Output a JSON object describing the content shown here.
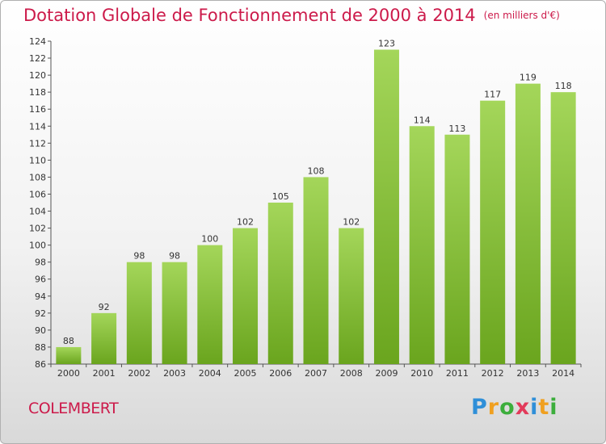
{
  "header": {
    "title": "Dotation Globale de Fonctionnement de 2000 à 2014",
    "subtitle": "(en milliers d'€)"
  },
  "commune": "COLEMBERT",
  "logo": {
    "letters": [
      "P",
      "r",
      "o",
      "x",
      "i",
      "t",
      "i"
    ],
    "colors": [
      "#2f8fd8",
      "#f0a020",
      "#3cae3c",
      "#e23a5a",
      "#2f8fd8",
      "#f0a020",
      "#3cae3c"
    ]
  },
  "colors": {
    "bar_top": "#a4d65a",
    "bar_bottom": "#6aa51e",
    "accent": "#cc1a4a"
  },
  "chart_data": {
    "type": "bar",
    "title": "Dotation Globale de Fonctionnement de 2000 à 2014",
    "subtitle": "(en milliers d'€)",
    "categories": [
      "2000",
      "2001",
      "2002",
      "2003",
      "2004",
      "2005",
      "2006",
      "2007",
      "2008",
      "2009",
      "2010",
      "2011",
      "2012",
      "2013",
      "2014"
    ],
    "values": [
      88,
      92,
      98,
      98,
      100,
      102,
      105,
      108,
      102,
      123,
      114,
      113,
      117,
      119,
      118
    ],
    "ylim": [
      86,
      124
    ],
    "yticks": [
      86,
      88,
      90,
      92,
      94,
      96,
      98,
      100,
      102,
      104,
      106,
      108,
      110,
      112,
      114,
      116,
      118,
      120,
      122,
      124
    ],
    "grid": false,
    "legend": "none"
  }
}
